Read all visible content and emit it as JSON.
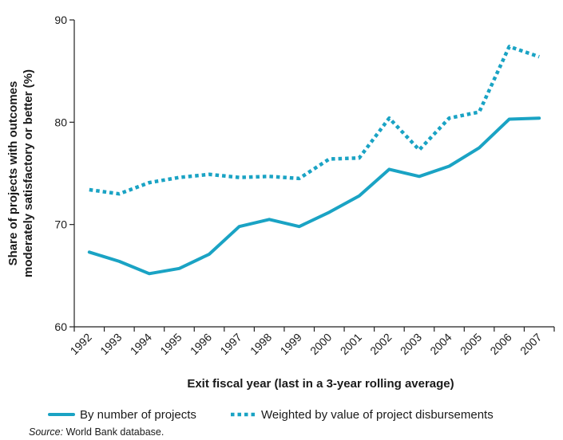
{
  "chart_data": {
    "type": "line",
    "title": "",
    "xlabel": "Exit fiscal year (last in a 3-year rolling average)",
    "ylabel_lines": [
      "Share of projects with outcomes",
      "moderately satisfactory or better (%)"
    ],
    "categories": [
      "1992",
      "1993",
      "1994",
      "1995",
      "1996",
      "1997",
      "1998",
      "1999",
      "2000",
      "2001",
      "2002",
      "2003",
      "2004",
      "2005",
      "2006",
      "2007"
    ],
    "ylim": [
      60,
      90
    ],
    "yticks": [
      60,
      70,
      80,
      90
    ],
    "grid": false,
    "legend_position": "bottom",
    "series": [
      {
        "name": "By number of projects",
        "style": "solid",
        "color": "#1aa3c4",
        "values": [
          67.3,
          66.4,
          65.2,
          65.7,
          67.1,
          69.8,
          70.5,
          69.8,
          71.2,
          72.8,
          75.4,
          74.7,
          75.7,
          77.5,
          80.3,
          80.4
        ]
      },
      {
        "name": "Weighted by value of project disbursements",
        "style": "dotted",
        "color": "#1aa3c4",
        "values": [
          73.4,
          73.0,
          74.1,
          74.6,
          74.9,
          74.6,
          74.7,
          74.5,
          76.4,
          76.5,
          80.4,
          77.3,
          80.4,
          81.0,
          87.4,
          86.4
        ]
      }
    ]
  },
  "source": {
    "prefix": "Source:",
    "text": " World Bank database."
  }
}
